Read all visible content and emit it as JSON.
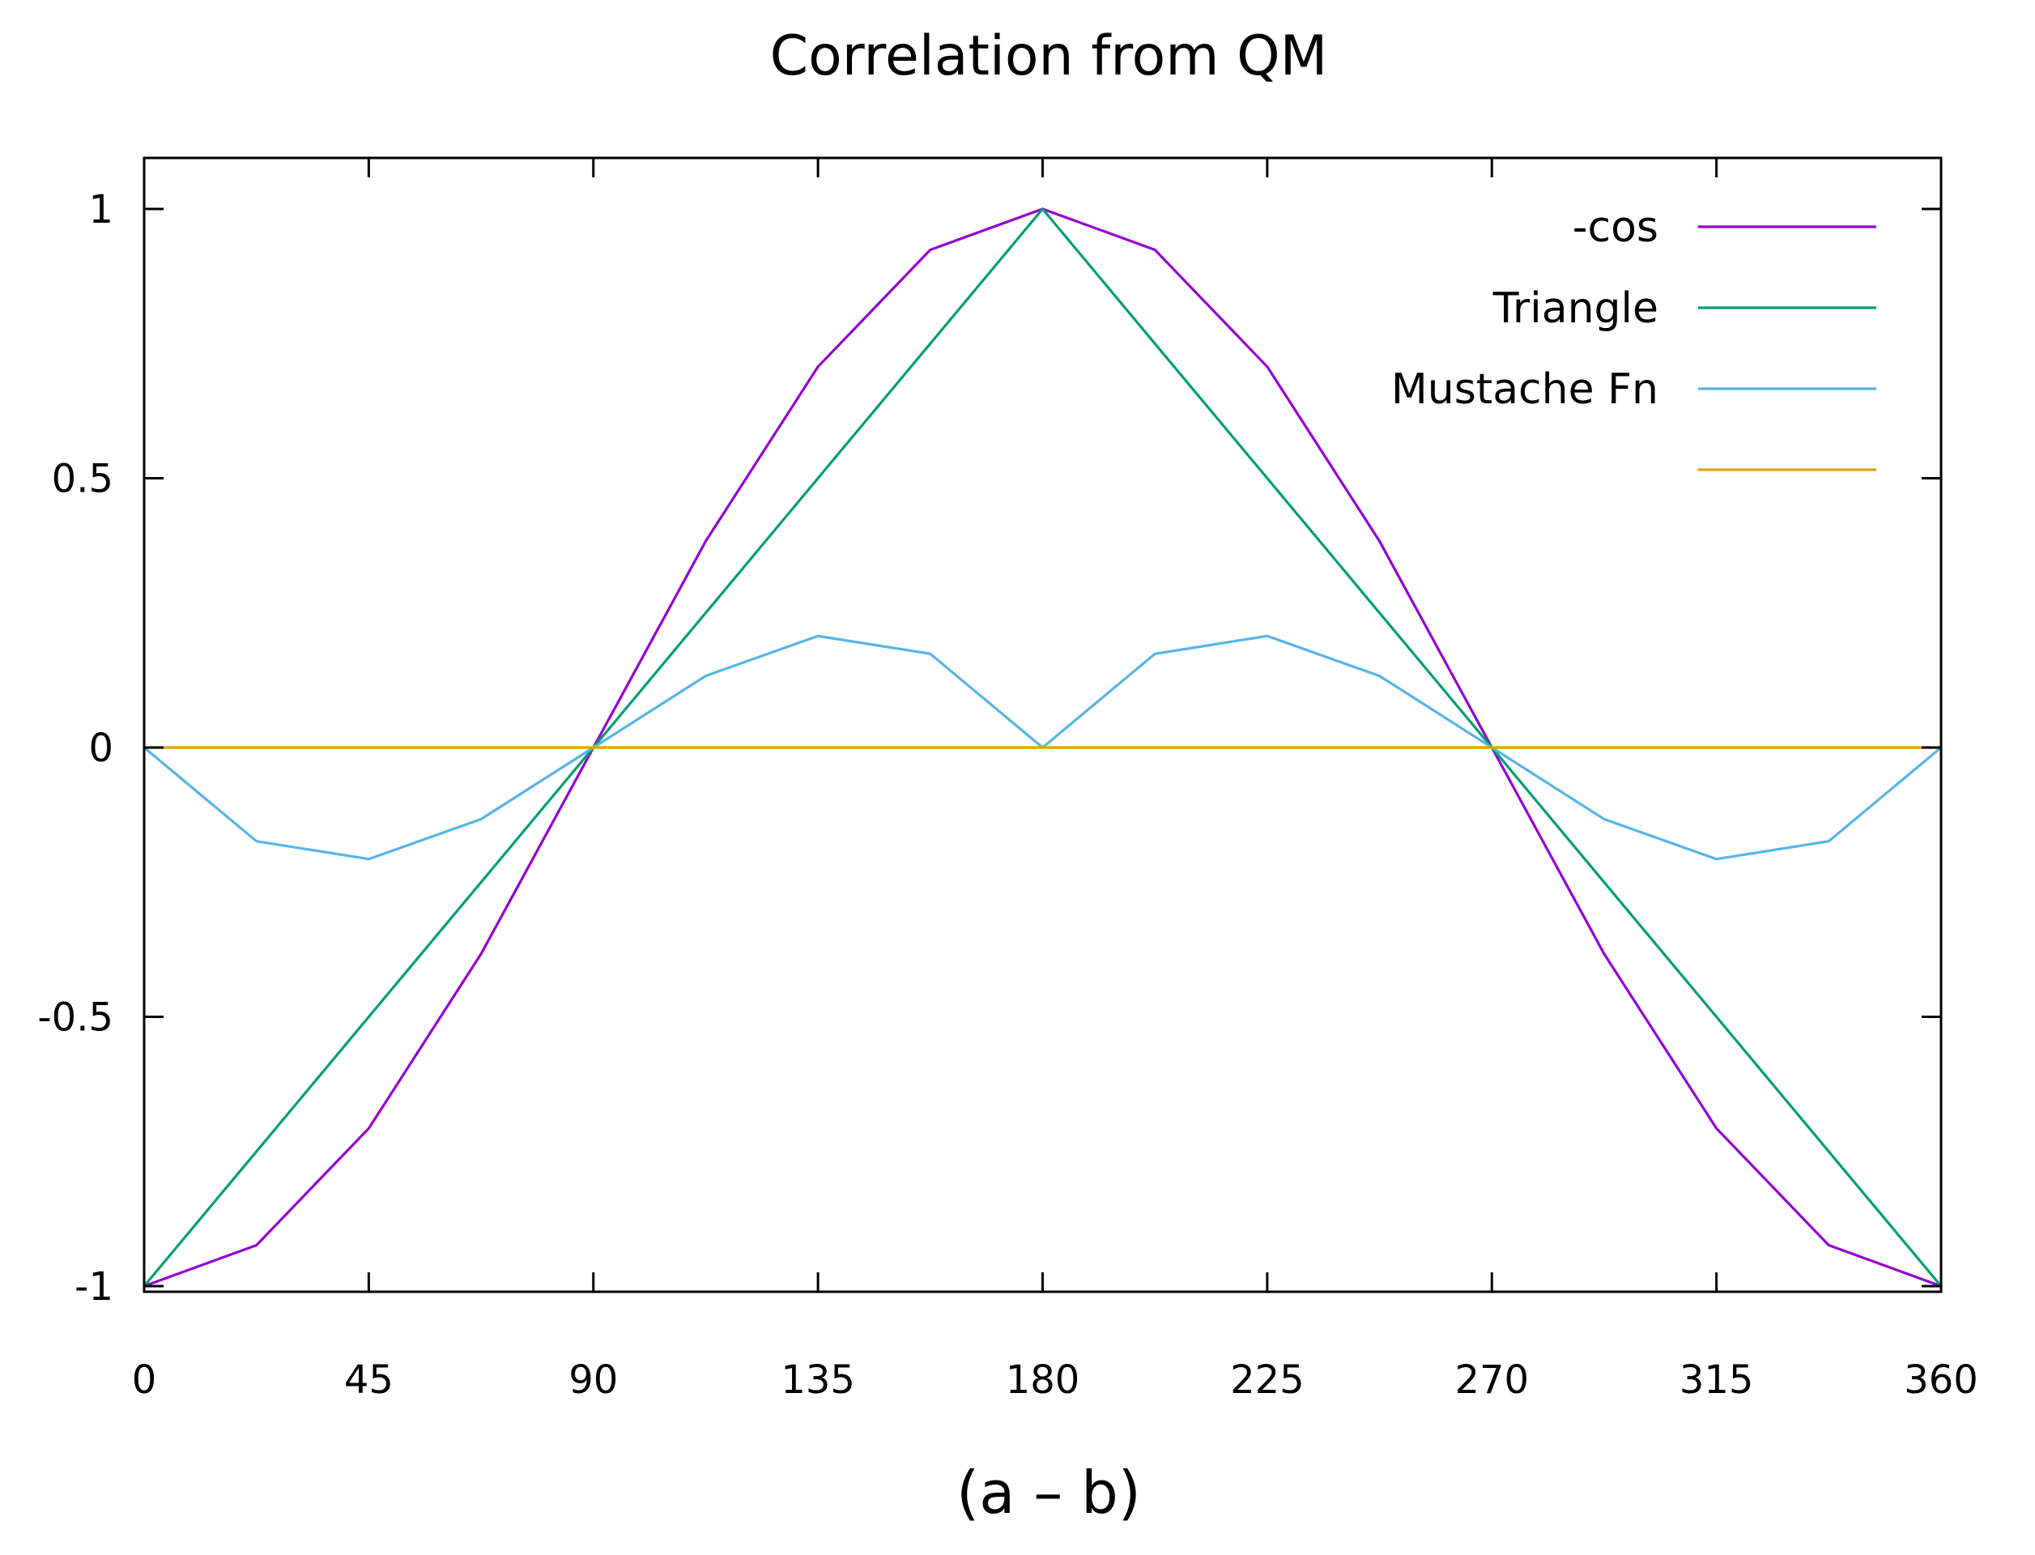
{
  "chart_data": {
    "type": "line",
    "title": "Correlation from QM",
    "xlabel": "(a – b)",
    "ylabel": "",
    "xlim": [
      0,
      360
    ],
    "ylim": [
      -1,
      1
    ],
    "xticks": [
      0,
      45,
      90,
      135,
      180,
      225,
      270,
      315,
      360
    ],
    "yticks": [
      1,
      0.5,
      0,
      -0.5,
      -1
    ],
    "xtick_labels": [
      "0",
      "45",
      "90",
      "135",
      "180",
      "225",
      "270",
      "315",
      "360"
    ],
    "ytick_labels": [
      "1",
      "0.5",
      "0",
      "-0.5",
      "-1"
    ],
    "grid": false,
    "legend_position": "top-right",
    "x": [
      0,
      22.5,
      45,
      67.5,
      90,
      112.5,
      135,
      157.5,
      180,
      202.5,
      225,
      247.5,
      270,
      292.5,
      315,
      337.5,
      360
    ],
    "series": [
      {
        "name": "-cos",
        "color": "#9400d3",
        "values": [
          -1,
          -0.924,
          -0.707,
          -0.383,
          0,
          0.383,
          0.707,
          0.924,
          1,
          0.924,
          0.707,
          0.383,
          0,
          -0.383,
          -0.707,
          -0.924,
          -1
        ]
      },
      {
        "name": "Triangle",
        "color": "#009e73",
        "values": [
          -1,
          -0.75,
          -0.5,
          -0.25,
          0,
          0.25,
          0.5,
          0.75,
          1,
          0.75,
          0.5,
          0.25,
          0,
          -0.25,
          -0.5,
          -0.75,
          -1
        ]
      },
      {
        "name": "Mustache Fn",
        "color": "#56b4e9",
        "values": [
          0,
          -0.174,
          -0.207,
          -0.133,
          0,
          0.133,
          0.207,
          0.174,
          0,
          0.174,
          0.207,
          0.133,
          0,
          -0.133,
          -0.207,
          -0.174,
          0
        ]
      },
      {
        "name": "",
        "color": "#e69f00",
        "values": [
          0,
          0,
          0,
          0,
          0,
          0,
          0,
          0,
          0,
          0,
          0,
          0,
          0,
          0,
          0,
          0,
          0
        ]
      }
    ]
  }
}
